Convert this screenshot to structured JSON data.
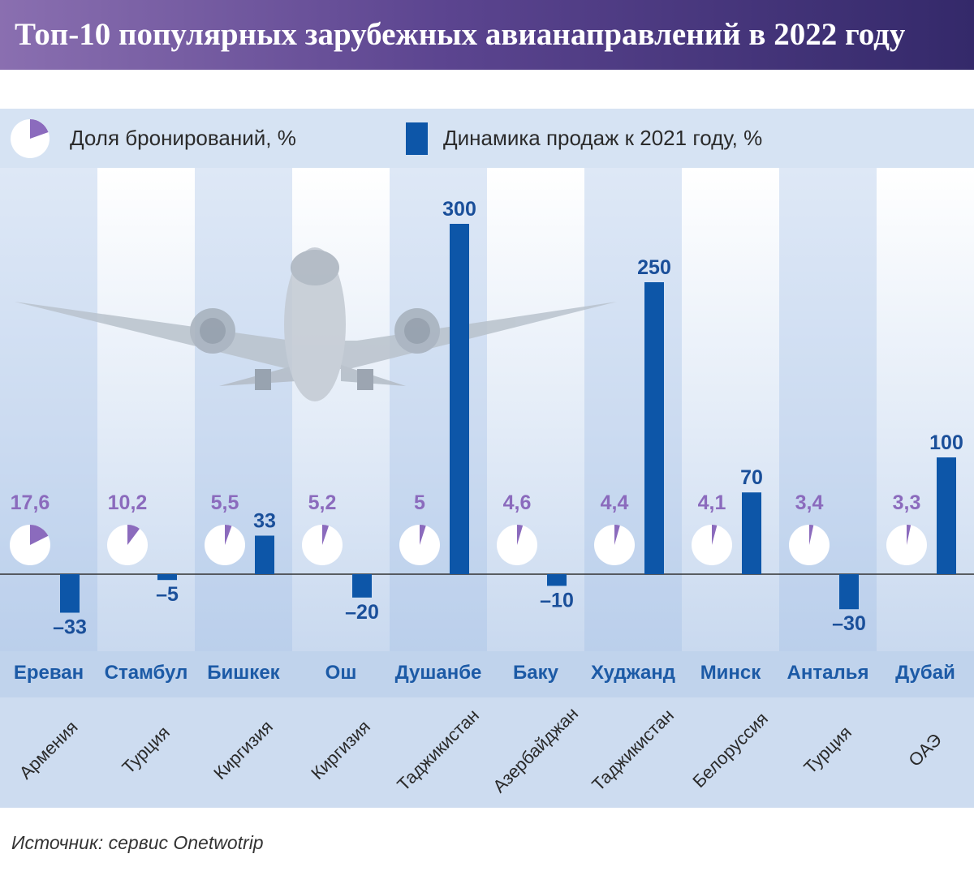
{
  "title": "Топ-10 популярных зарубежных авианаправлений в 2022 году",
  "legend": {
    "share_label": "Доля бронирований, %",
    "dynamics_label": "Динамика продаж к 2021 году, %"
  },
  "source": "Источник: сервис Onetwotrip",
  "colors": {
    "pie": "#8b6bbd",
    "bar": "#0d56a8",
    "title_bg": "#4a3a80",
    "city_text": "#1c5aa6"
  },
  "chart_data": {
    "type": "bar",
    "title": "Топ-10 популярных зарубежных авианаправлений в 2022 году",
    "categories": [
      "Ереван",
      "Стамбул",
      "Бишкек",
      "Ош",
      "Душанбе",
      "Баку",
      "Худжанд",
      "Минск",
      "Анталья",
      "Дубай"
    ],
    "countries": [
      "Армения",
      "Турция",
      "Киргизия",
      "Киргизия",
      "Таджикистан",
      "Азербайджан",
      "Таджикистан",
      "Белоруссия",
      "Турция",
      "ОАЭ"
    ],
    "series": [
      {
        "name": "Доля бронирований, %",
        "kind": "pie",
        "values": [
          17.6,
          10.2,
          5.5,
          5.2,
          5,
          4.6,
          4.4,
          4.1,
          3.4,
          3.3
        ],
        "labels": [
          "17,6",
          "10,2",
          "5,5",
          "5,2",
          "5",
          "4,6",
          "4,4",
          "4,1",
          "3,4",
          "3,3"
        ]
      },
      {
        "name": "Динамика продаж к 2021 году, %",
        "kind": "bar",
        "values": [
          -33,
          -5,
          33,
          -20,
          300,
          -10,
          250,
          70,
          -30,
          100
        ],
        "labels": [
          "–33",
          "–5",
          "33",
          "–20",
          "300",
          "–10",
          "250",
          "70",
          "–30",
          "100"
        ]
      }
    ],
    "ylim": [
      -33,
      300
    ],
    "xlabel": "",
    "ylabel": ""
  }
}
